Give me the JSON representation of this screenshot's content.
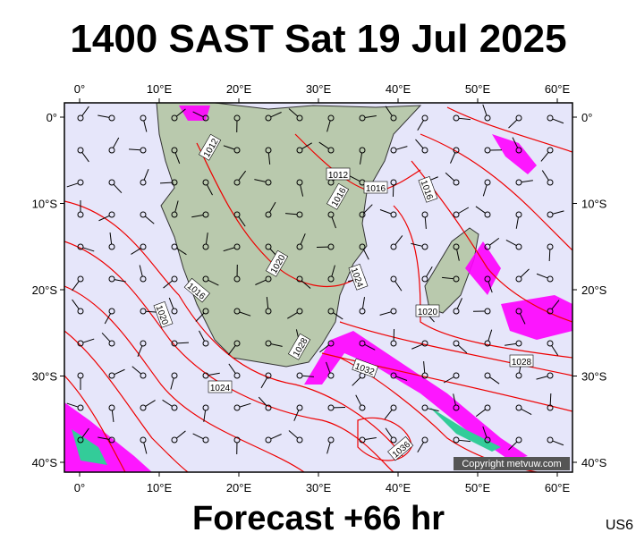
{
  "title": "1400 SAST Sat 19 Jul 2025",
  "footer": "Forecast +66 hr",
  "code": "US6",
  "copyright": "Copyright metvuw.com",
  "lon_labels": [
    "0°",
    "10°E",
    "20°E",
    "30°E",
    "40°E",
    "50°E",
    "60°E"
  ],
  "lat_labels": [
    "0°",
    "10°S",
    "20°S",
    "30°S",
    "40°S"
  ],
  "contour_labels": [
    "1012",
    "1012",
    "1016",
    "1016",
    "1016",
    "1020",
    "1016",
    "1020",
    "1024",
    "1020",
    "1028",
    "1024",
    "1032",
    "1028",
    "1036"
  ]
}
